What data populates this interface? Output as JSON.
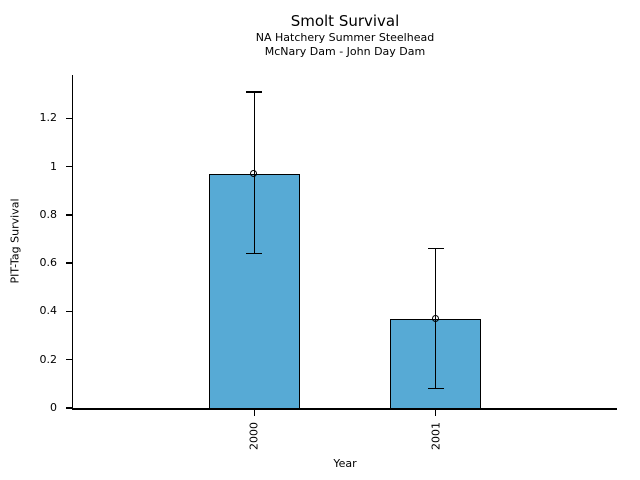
{
  "chart_data": {
    "type": "bar",
    "title": "Smolt Survival",
    "subtitle": [
      "NA Hatchery Summer Steelhead",
      "McNary Dam - John Day Dam"
    ],
    "xlabel": "Year",
    "ylabel": "PIT-Tag Survival",
    "categories": [
      "2000",
      "2001"
    ],
    "values": [
      0.97,
      0.37
    ],
    "error_bars": {
      "low": [
        0.64,
        0.08
      ],
      "high": [
        1.31,
        0.66
      ]
    },
    "ytick_values": [
      0,
      0.2,
      0.4,
      0.6,
      0.8,
      1.0,
      1.2
    ],
    "ytick_labels": [
      "0",
      "0.2",
      "0.4",
      "0.6",
      "0.8",
      "1",
      "1.2"
    ],
    "ylim": [
      0,
      1.38
    ],
    "grid": false,
    "legend": false,
    "marker": "open-circle",
    "xtick_label_rotation_deg": 90,
    "colors": {
      "bar_fill": "#57aad5",
      "bar_edge": "#000000",
      "error_bar": "#000000",
      "text": "#000000",
      "background": "#ffffff"
    }
  }
}
